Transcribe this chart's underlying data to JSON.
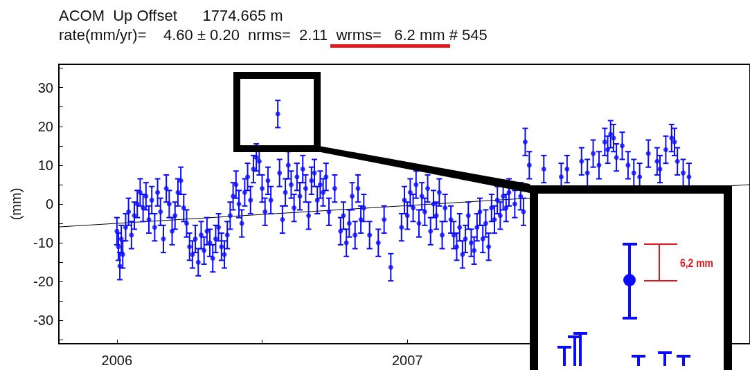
{
  "chart_data": {
    "type": "scatter",
    "title": "ACOM  Up Offset      1774.665 m",
    "subtitle": "rate(mm/yr)=    4.60 ± 0.20  nrms=  2.11  wrms=   6.2 mm # 545",
    "ylabel": "(mm)",
    "xlim": [
      2005.8,
      2008.18
    ],
    "xticks": [
      2006,
      {
        "value": 2006.5,
        "label": null
      },
      2007,
      {
        "value": 2007.5,
        "label": null
      },
      {
        "value": 2008,
        "label": null
      }
    ],
    "ylim": [
      -36,
      36
    ],
    "yticks": [
      {
        "value": -35,
        "label": null
      },
      -30,
      {
        "value": -25,
        "label": null
      },
      -20,
      {
        "value": -15,
        "label": null
      },
      -10,
      {
        "value": -5,
        "label": null
      },
      0,
      {
        "value": 5,
        "label": null
      },
      10,
      {
        "value": 15,
        "label": null
      },
      20,
      {
        "value": 25,
        "label": null
      },
      30,
      {
        "value": 35,
        "label": null
      }
    ],
    "marker": "circle",
    "annotations": [
      "6,2 mm"
    ],
    "series": [
      {
        "color": "#0a0aff",
        "x": [
          2006.0,
          2006.005,
          2006.01,
          2006.015,
          2006.02,
          2006.03,
          2006.04,
          2006.05,
          2006.06,
          2006.07,
          2006.08,
          2006.09,
          2006.1,
          2006.11,
          2006.12,
          2006.13,
          2006.14,
          2006.15,
          2006.16,
          2006.17,
          2006.18,
          2006.19,
          2006.2,
          2006.21,
          2006.22,
          2006.23,
          2006.24,
          2006.25,
          2006.26,
          2006.27,
          2006.28,
          2006.29,
          2006.3,
          2006.31,
          2006.32,
          2006.33,
          2006.34,
          2006.35,
          2006.36,
          2006.37,
          2006.38,
          2006.39,
          2006.4,
          2006.41,
          2006.42,
          2006.43,
          2006.44,
          2006.45,
          2006.46,
          2006.47,
          2006.48,
          2006.49,
          2006.5,
          2006.51,
          2006.52,
          2006.53,
          2006.554,
          2006.56,
          2006.57,
          2006.58,
          2006.59,
          2006.6,
          2006.61,
          2006.62,
          2006.63,
          2006.64,
          2006.65,
          2006.66,
          2006.67,
          2006.68,
          2006.69,
          2006.7,
          2006.71,
          2006.72,
          2006.73,
          2006.75,
          2006.77,
          2006.78,
          2006.79,
          2006.8,
          2006.81,
          2006.82,
          2006.83,
          2006.84,
          2006.85,
          2006.87,
          2006.9,
          2006.92,
          2006.943,
          2006.98,
          2006.99,
          2007.0,
          2007.01,
          2007.02,
          2007.03,
          2007.04,
          2007.05,
          2007.06,
          2007.07,
          2007.08,
          2007.09,
          2007.1,
          2007.11,
          2007.12,
          2007.13,
          2007.15,
          2007.16,
          2007.17,
          2007.18,
          2007.19,
          2007.2,
          2007.21,
          2007.22,
          2007.23,
          2007.24,
          2007.25,
          2007.26,
          2007.27,
          2007.28,
          2007.29,
          2007.3,
          2007.31,
          2007.32,
          2007.33,
          2007.34,
          2007.35,
          2007.37,
          2007.39,
          2007.4,
          2007.406,
          2007.42,
          2007.47,
          2007.53,
          2007.55,
          2007.6,
          2007.62,
          2007.64,
          2007.66,
          2007.68,
          2007.69,
          2007.7,
          2007.71,
          2007.72,
          2007.74,
          2007.76,
          2007.78,
          2007.8,
          2007.83,
          2007.86,
          2007.87,
          2007.89,
          2007.91,
          2007.92,
          2007.93,
          2007.95,
          2007.97
        ],
        "values": [
          -7,
          -11,
          -16,
          -9,
          -13,
          -6,
          -2,
          -8,
          -3,
          0,
          3,
          -1,
          2,
          -4,
          1,
          -6,
          3,
          -2,
          -9,
          4,
          0,
          -7,
          -3,
          3,
          6,
          -1,
          -5,
          -11,
          -13,
          -9,
          -15,
          -8,
          -12,
          -7,
          -10,
          -14,
          -9,
          -6,
          -11,
          -13,
          -8,
          -3,
          2,
          5,
          0,
          -5,
          3,
          7,
          1,
          9,
          12,
          11,
          4,
          -2,
          6,
          1,
          23.2,
          8,
          -4,
          3,
          10,
          5,
          -1,
          7,
          2,
          9,
          4,
          -3,
          6,
          8,
          1,
          5,
          3,
          7,
          -2,
          4,
          -7,
          -3,
          -10,
          -5,
          2,
          -8,
          4,
          -4,
          -1,
          -8,
          -10,
          -4,
          -16.3,
          -6,
          1,
          -3,
          3,
          -1,
          5,
          -5,
          2,
          -2,
          4,
          -7,
          0,
          -3,
          3,
          -8,
          -1,
          -4,
          -8,
          -11,
          -6,
          -13,
          -9,
          -3,
          -10,
          -12,
          -6,
          -2,
          -9,
          -5,
          -11,
          -1,
          -4,
          1,
          -3,
          2,
          -1,
          3,
          0,
          2,
          -2,
          16,
          10,
          9,
          7,
          9,
          11,
          8,
          13,
          10,
          16,
          14,
          18,
          17,
          12,
          15,
          10,
          8,
          7,
          13,
          11,
          9,
          14,
          17,
          16,
          11,
          8,
          7
        ],
        "errors": [
          3.5,
          3.5,
          3.5,
          3.5,
          3.5,
          3.5,
          3.5,
          3.5,
          3.5,
          3.5,
          3.5,
          3.5,
          3.5,
          3.5,
          3.5,
          3.5,
          3.5,
          3.5,
          3.5,
          3.5,
          3.5,
          3.5,
          3.5,
          3.5,
          3.5,
          3.5,
          3.5,
          3.5,
          3.5,
          3.5,
          3.5,
          3.5,
          3.5,
          3.5,
          3.5,
          3.5,
          3.5,
          3.5,
          3.5,
          3.5,
          3.5,
          3.5,
          3.5,
          3.5,
          3.5,
          3.5,
          3.5,
          3.5,
          3.5,
          3.5,
          3.5,
          3.5,
          3.5,
          3.5,
          3.5,
          3.5,
          3.5,
          3.5,
          3.5,
          3.5,
          3.5,
          3.5,
          3.5,
          3.5,
          3.5,
          3.5,
          3.5,
          3.5,
          3.5,
          3.5,
          3.5,
          3.5,
          3.5,
          3.5,
          3.5,
          3.5,
          3.5,
          3.5,
          3.5,
          3.5,
          3.5,
          3.5,
          3.5,
          3.5,
          3.5,
          3.5,
          3.5,
          3.5,
          3.5,
          3.5,
          3.5,
          3.5,
          3.5,
          3.5,
          3.5,
          3.5,
          3.5,
          3.5,
          3.5,
          3.5,
          3.5,
          3.5,
          3.5,
          3.5,
          3.5,
          3.5,
          3.5,
          3.5,
          3.5,
          3.5,
          3.5,
          3.5,
          3.5,
          3.5,
          3.5,
          3.5,
          3.5,
          3.5,
          3.5,
          3.5,
          3.5,
          3.5,
          3.5,
          3.5,
          3.5,
          3.5,
          3.5,
          3.5,
          3.5,
          3.5,
          3.5,
          3.5,
          3.5,
          3.5,
          3.5,
          3.5,
          3.5,
          3.5,
          3.5,
          3.5,
          3.5,
          3.5,
          3.5,
          3.5,
          3.5,
          3.5,
          3.5,
          3.5,
          3.5,
          3.5,
          3.5,
          3.5,
          3.5,
          3.5,
          3.5,
          3.5
        ]
      },
      {
        "type": "line",
        "color": "#000000",
        "marker": "none",
        "x": [
          2005.8,
          2008.18
        ],
        "values": [
          -5.9,
          5.0
        ]
      }
    ]
  }
}
